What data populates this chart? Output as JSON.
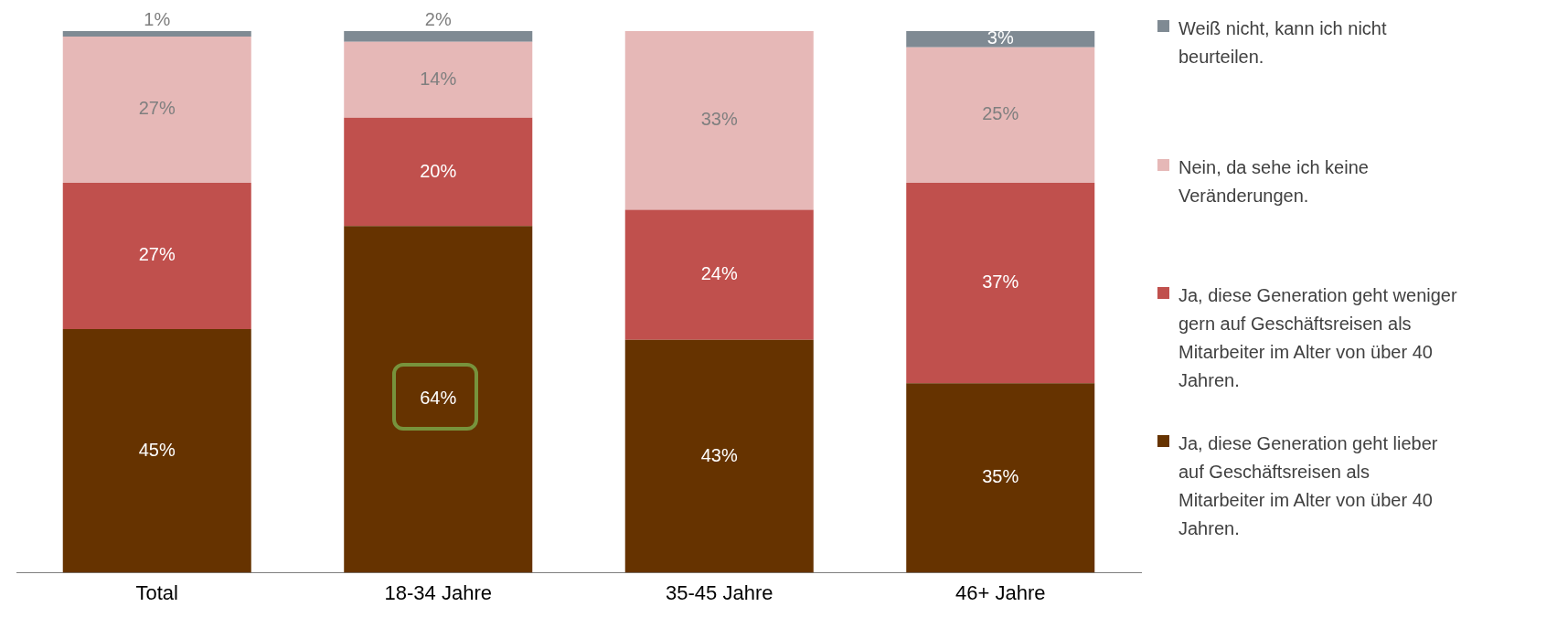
{
  "chart_data": {
    "type": "bar",
    "stacked": true,
    "legend": "right",
    "categories": [
      "Total",
      "18-34 Jahre",
      "35-45 Jahre",
      "46+ Jahre"
    ],
    "series": [
      {
        "name": "Ja, diese Generation geht lieber auf Geschäftsreisen als Mitarbeiter im Alter von über 40 Jahren.",
        "color": "#663300",
        "values": [
          45,
          64,
          43,
          35
        ],
        "value_labels": [
          "45%",
          "64%",
          "43%",
          "35%"
        ]
      },
      {
        "name": "Ja, diese Generation geht weniger gern auf Geschäftsreisen als Mitarbeiter im Alter von über 40 Jahren.",
        "color": "#c0504d",
        "values": [
          27,
          20,
          24,
          37
        ],
        "value_labels": [
          "27%",
          "20%",
          "24%",
          "37%"
        ]
      },
      {
        "name": "Nein, da sehe ich keine Veränderungen.",
        "color": "#e6b8b7",
        "values": [
          27,
          14,
          33,
          25
        ],
        "value_labels": [
          "27%",
          "14%",
          "33%",
          "25%"
        ]
      },
      {
        "name": "Weiß nicht, kann ich nicht beurteilen.",
        "color": "#7f8a93",
        "values": [
          1,
          2,
          null,
          3
        ],
        "value_labels": [
          "1%",
          "2%",
          null,
          "3%"
        ]
      }
    ]
  }
}
